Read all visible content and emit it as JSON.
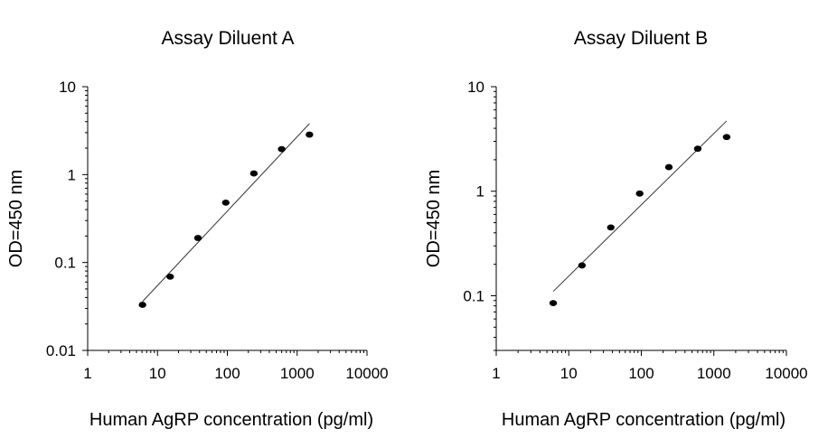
{
  "chart_data": [
    {
      "type": "scatter",
      "title": "Assay Diluent A",
      "xlabel": "Human AgRP concentration (pg/ml)",
      "ylabel": "OD=450 nm",
      "x_scale": "log",
      "y_scale": "log",
      "xlim": [
        1,
        10000
      ],
      "ylim": [
        0.01,
        10
      ],
      "x_ticks": [
        1,
        10,
        100,
        1000,
        10000
      ],
      "x_tick_labels": [
        "1",
        "10",
        "100",
        "1000",
        "10000"
      ],
      "y_ticks": [
        0.01,
        0.1,
        1,
        10
      ],
      "y_tick_labels": [
        "0.01",
        "0.1",
        "1",
        "10"
      ],
      "grid": false,
      "series": [
        {
          "x": [
            6.1,
            15.2,
            38,
            95,
            240,
            600,
            1500
          ],
          "y": [
            0.033,
            0.069,
            0.19,
            0.48,
            1.03,
            1.95,
            2.85
          ]
        }
      ],
      "fit_line": {
        "x": [
          6.1,
          1500
        ],
        "y": [
          0.036,
          3.8
        ]
      }
    },
    {
      "type": "scatter",
      "title": "Assay Diluent B",
      "xlabel": "Human AgRP concentration (pg/ml)",
      "ylabel": "OD=450 nm",
      "x_scale": "log",
      "y_scale": "log",
      "xlim": [
        1,
        10000
      ],
      "ylim": [
        0.03,
        10
      ],
      "x_ticks": [
        1,
        10,
        100,
        1000,
        10000
      ],
      "x_tick_labels": [
        "1",
        "10",
        "100",
        "1000",
        "10000"
      ],
      "y_ticks": [
        0.1,
        1,
        10
      ],
      "y_tick_labels": [
        "0.1",
        "1",
        "10"
      ],
      "grid": false,
      "series": [
        {
          "x": [
            6.1,
            15.2,
            38,
            95,
            240,
            600,
            1500
          ],
          "y": [
            0.085,
            0.195,
            0.45,
            0.95,
            1.7,
            2.55,
            3.3
          ]
        }
      ],
      "fit_line": {
        "x": [
          6.1,
          1500
        ],
        "y": [
          0.11,
          4.7
        ]
      }
    }
  ]
}
